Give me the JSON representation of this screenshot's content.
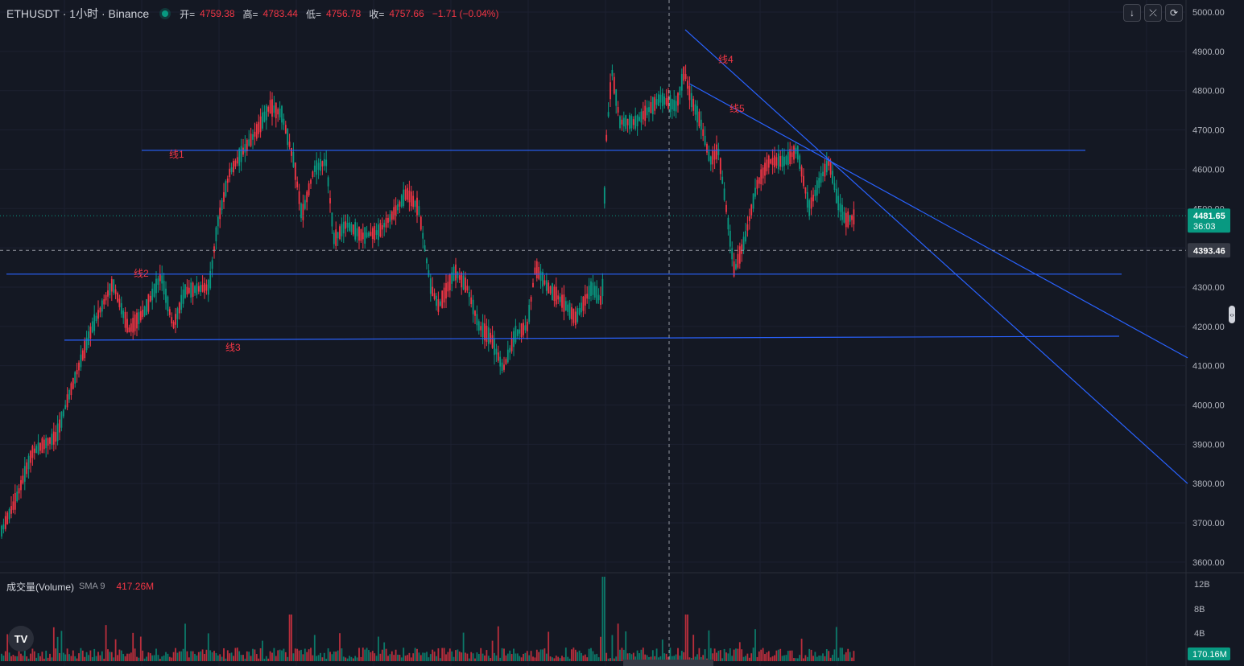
{
  "header": {
    "symbol": "ETHUSDT · 1小时 · Binance",
    "open_label": "开=",
    "open": "4759.38",
    "high_label": "高=",
    "high": "4783.44",
    "low_label": "低=",
    "low": "4756.78",
    "close_label": "收=",
    "close": "4757.66",
    "change": "−1.71 (−0.04%)"
  },
  "toolbar": {
    "icons": [
      "arrow-down-icon",
      "collapse-icon",
      "fullscreen-icon"
    ]
  },
  "price_axis": {
    "ticks": [
      "5000.00",
      "4900.00",
      "4800.00",
      "4700.00",
      "4600.00",
      "4500.00",
      "4400.00",
      "4300.00",
      "4200.00",
      "4100.00",
      "4000.00",
      "3900.00",
      "3800.00",
      "3700.00",
      "3600.00"
    ],
    "last_price": "4481.65",
    "countdown": "36:03",
    "crosshair_price": "4393.46"
  },
  "volume_axis": {
    "ticks": [
      "12B",
      "8B",
      "4B"
    ],
    "current": "170.16M"
  },
  "volume_legend": {
    "name": "成交量(Volume)",
    "sma_label": "SMA 9",
    "sma_value": "417.26M"
  },
  "drawings": [
    {
      "label": "线1",
      "from": [
        176,
        4648
      ],
      "to": [
        1348,
        4648
      ]
    },
    {
      "label": "线2",
      "from": [
        8,
        4333
      ],
      "to": [
        1393,
        4333
      ]
    },
    {
      "label": "线3",
      "from": [
        80,
        4165
      ],
      "to": [
        1390,
        4175
      ]
    },
    {
      "label": "线4",
      "from": [
        851,
        4955
      ],
      "to": [
        1475,
        3800
      ]
    },
    {
      "label": "线5",
      "from": [
        856,
        4818
      ],
      "to": [
        1475,
        4120
      ]
    }
  ],
  "colors": {
    "background": "#141823",
    "up": "#089981",
    "down": "#f23645",
    "drawing_line": "#2962ff",
    "drawing_label": "#f23645",
    "last_price_badge": "#089981"
  },
  "logo": "TV"
}
